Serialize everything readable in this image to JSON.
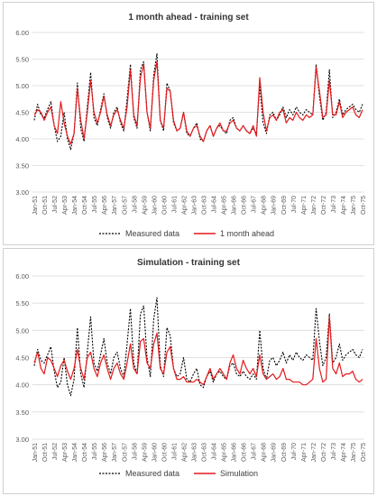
{
  "chart_data": [
    {
      "type": "line",
      "title": "1 month ahead - training set",
      "ylim": [
        3.0,
        6.0
      ],
      "yticks": [
        "3.00",
        "3.50",
        "4.00",
        "4.50",
        "5.00",
        "5.50",
        "6.00"
      ],
      "x_tick_labels": [
        "Jan-51",
        "Oct-51",
        "Jul-52",
        "Apr-53",
        "Jan-54",
        "Oct-54",
        "Jul-55",
        "Apr-56",
        "Jan-57",
        "Oct-57",
        "Jul-58",
        "Apr-59",
        "Jan-60",
        "Oct-60",
        "Jul-61",
        "Apr-62",
        "Jan-63",
        "Oct-63",
        "Jul-64",
        "Apr-65",
        "Jan-66",
        "Oct-66",
        "Jul-67",
        "Apr-68",
        "Jan-69",
        "Oct-69",
        "Jul-70",
        "Apr-71",
        "Jan-72",
        "Oct-72",
        "Jul-73",
        "Apr-74",
        "Jan-75",
        "Oct-75"
      ],
      "grid": "horizontal",
      "legend": "bottom",
      "x_start": "1951-01",
      "x_step_months": 3,
      "series": [
        {
          "name": "Measured data",
          "color": "#000000",
          "dash": "dotted",
          "values": [
            4.35,
            4.65,
            4.45,
            4.4,
            4.55,
            4.7,
            4.25,
            3.95,
            4.05,
            4.5,
            4.0,
            3.8,
            4.1,
            5.05,
            4.2,
            3.95,
            4.6,
            5.25,
            4.4,
            4.25,
            4.55,
            4.85,
            4.4,
            4.2,
            4.5,
            4.6,
            4.3,
            4.15,
            4.75,
            5.4,
            4.4,
            4.2,
            5.3,
            5.45,
            4.5,
            4.15,
            5.2,
            5.6,
            4.35,
            4.15,
            5.05,
            4.9,
            4.3,
            4.15,
            4.2,
            4.5,
            4.1,
            4.05,
            4.2,
            4.3,
            4.0,
            3.95,
            4.15,
            4.25,
            4.05,
            4.2,
            4.25,
            4.15,
            4.1,
            4.35,
            4.4,
            4.2,
            4.15,
            4.25,
            4.15,
            4.1,
            4.2,
            4.1,
            5.0,
            4.3,
            4.1,
            4.45,
            4.5,
            4.35,
            4.45,
            4.6,
            4.4,
            4.55,
            4.45,
            4.6,
            4.5,
            4.45,
            4.55,
            4.5,
            4.45,
            5.4,
            4.8,
            4.35,
            4.5,
            5.3,
            4.4,
            4.5,
            4.75,
            4.45,
            4.55,
            4.6,
            4.65,
            4.55,
            4.5,
            4.65
          ]
        },
        {
          "name": "1 month ahead",
          "color": "#e41a1c",
          "dash": "solid",
          "values": [
            4.45,
            4.55,
            4.5,
            4.35,
            4.5,
            4.6,
            4.25,
            4.1,
            4.7,
            4.3,
            4.05,
            3.9,
            4.1,
            4.95,
            4.35,
            4.0,
            4.5,
            5.1,
            4.5,
            4.3,
            4.5,
            4.8,
            4.45,
            4.25,
            4.45,
            4.55,
            4.35,
            4.2,
            4.6,
            5.3,
            4.45,
            4.25,
            5.15,
            5.4,
            4.5,
            4.2,
            5.1,
            5.45,
            4.35,
            4.2,
            4.95,
            4.9,
            4.35,
            4.15,
            4.2,
            4.5,
            4.15,
            4.05,
            4.2,
            4.25,
            4.05,
            3.95,
            4.15,
            4.25,
            4.05,
            4.2,
            4.3,
            4.15,
            4.15,
            4.3,
            4.35,
            4.2,
            4.15,
            4.25,
            4.15,
            4.1,
            4.25,
            4.05,
            5.15,
            4.5,
            4.15,
            4.4,
            4.45,
            4.35,
            4.5,
            4.55,
            4.3,
            4.4,
            4.35,
            4.5,
            4.4,
            4.35,
            4.45,
            4.4,
            4.45,
            5.35,
            4.9,
            4.4,
            4.45,
            5.1,
            4.45,
            4.45,
            4.7,
            4.4,
            4.5,
            4.55,
            4.6,
            4.45,
            4.4,
            4.55
          ]
        }
      ]
    },
    {
      "type": "line",
      "title": "Simulation - training set",
      "ylim": [
        3.0,
        6.0
      ],
      "yticks": [
        "3.00",
        "3.50",
        "4.00",
        "4.50",
        "5.00",
        "5.50",
        "6.00"
      ],
      "x_tick_labels": [
        "Jan-51",
        "Oct-51",
        "Jul-52",
        "Apr-53",
        "Jan-54",
        "Oct-54",
        "Jul-55",
        "Apr-56",
        "Jan-57",
        "Oct-57",
        "Jul-58",
        "Apr-59",
        "Jan-60",
        "Oct-60",
        "Jul-61",
        "Apr-62",
        "Jan-63",
        "Oct-63",
        "Jul-64",
        "Apr-65",
        "Jan-66",
        "Oct-66",
        "Jul-67",
        "Apr-68",
        "Jan-69",
        "Oct-69",
        "Jul-70",
        "Apr-71",
        "Jan-72",
        "Oct-72",
        "Jul-73",
        "Apr-74",
        "Jan-75",
        "Oct-75"
      ],
      "grid": "horizontal",
      "legend": "bottom",
      "x_start": "1951-01",
      "x_step_months": 3,
      "series": [
        {
          "name": "Measured data",
          "color": "#000000",
          "dash": "dotted",
          "values": [
            4.35,
            4.65,
            4.45,
            4.4,
            4.55,
            4.7,
            4.25,
            3.95,
            4.05,
            4.5,
            4.0,
            3.8,
            4.1,
            5.05,
            4.2,
            3.95,
            4.6,
            5.25,
            4.4,
            4.25,
            4.55,
            4.85,
            4.4,
            4.2,
            4.5,
            4.6,
            4.3,
            4.15,
            4.75,
            5.4,
            4.4,
            4.2,
            5.3,
            5.45,
            4.5,
            4.15,
            5.2,
            5.6,
            4.35,
            4.15,
            5.05,
            4.9,
            4.3,
            4.15,
            4.2,
            4.5,
            4.1,
            4.05,
            4.2,
            4.3,
            4.0,
            3.95,
            4.15,
            4.25,
            4.05,
            4.2,
            4.25,
            4.15,
            4.1,
            4.35,
            4.4,
            4.2,
            4.15,
            4.25,
            4.15,
            4.1,
            4.2,
            4.1,
            5.0,
            4.3,
            4.1,
            4.45,
            4.5,
            4.35,
            4.45,
            4.6,
            4.4,
            4.55,
            4.45,
            4.6,
            4.5,
            4.45,
            4.55,
            4.5,
            4.45,
            5.4,
            4.8,
            4.35,
            4.5,
            5.3,
            4.4,
            4.5,
            4.75,
            4.45,
            4.55,
            4.6,
            4.65,
            4.55,
            4.5,
            4.65
          ]
        },
        {
          "name": "Simulation",
          "color": "#e41a1c",
          "dash": "solid",
          "values": [
            4.4,
            4.6,
            4.3,
            4.2,
            4.5,
            4.45,
            4.3,
            4.15,
            4.35,
            4.45,
            4.25,
            4.1,
            4.3,
            4.65,
            4.3,
            4.1,
            4.5,
            4.6,
            4.3,
            4.15,
            4.4,
            4.55,
            4.3,
            4.1,
            4.3,
            4.4,
            4.2,
            4.1,
            4.4,
            4.75,
            4.3,
            4.2,
            4.8,
            4.85,
            4.4,
            4.3,
            4.75,
            4.95,
            4.3,
            4.2,
            4.6,
            4.7,
            4.3,
            4.1,
            4.1,
            4.15,
            4.05,
            4.05,
            4.05,
            4.1,
            4.05,
            4.0,
            4.15,
            4.3,
            4.1,
            4.2,
            4.3,
            4.2,
            4.1,
            4.4,
            4.55,
            4.3,
            4.2,
            4.45,
            4.3,
            4.2,
            4.3,
            4.15,
            4.55,
            4.2,
            4.1,
            4.15,
            4.2,
            4.1,
            4.15,
            4.3,
            4.1,
            4.1,
            4.05,
            4.05,
            4.05,
            4.0,
            4.0,
            4.05,
            4.1,
            4.85,
            4.3,
            4.05,
            4.1,
            5.25,
            4.3,
            4.2,
            4.4,
            4.15,
            4.2,
            4.2,
            4.25,
            4.1,
            4.05,
            4.1
          ]
        }
      ]
    }
  ]
}
